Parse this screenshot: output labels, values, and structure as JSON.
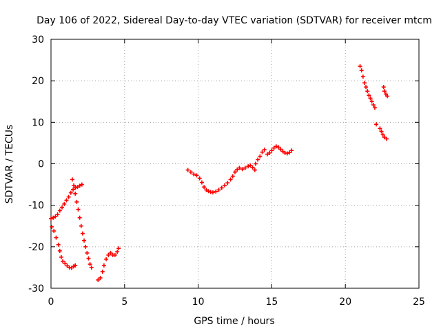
{
  "chart_data": {
    "type": "scatter",
    "title": "Day 106 of 2022, Sidereal Day-to-day VTEC variation (SDTVAR) for receiver mtcm",
    "xlabel": "GPS time / hours",
    "ylabel": "SDTVAR / TECUs",
    "xlim": [
      0,
      25
    ],
    "ylim": [
      -30,
      30
    ],
    "xticks": [
      0,
      5,
      10,
      15,
      20,
      25
    ],
    "yticks": [
      -30,
      -20,
      -10,
      0,
      10,
      20,
      30
    ],
    "grid": true,
    "marker": "plus",
    "color": "#ff0000",
    "series": [
      {
        "values": [
          [
            0.0,
            -13.2
          ],
          [
            0.15,
            -13.0
          ],
          [
            0.3,
            -12.7
          ],
          [
            0.45,
            -12.2
          ],
          [
            0.6,
            -11.3
          ],
          [
            0.75,
            -10.5
          ],
          [
            0.9,
            -9.7
          ],
          [
            1.05,
            -8.8
          ],
          [
            1.2,
            -8.0
          ],
          [
            1.35,
            -7.0
          ],
          [
            1.5,
            -6.2
          ],
          [
            1.65,
            -5.8
          ],
          [
            1.8,
            -5.6
          ],
          [
            1.95,
            -5.3
          ],
          [
            2.1,
            -5.0
          ],
          [
            0.05,
            -15.2
          ],
          [
            0.2,
            -16.2
          ],
          [
            0.35,
            -17.8
          ],
          [
            0.5,
            -19.5
          ],
          [
            0.6,
            -21.0
          ],
          [
            0.7,
            -22.5
          ],
          [
            0.8,
            -23.5
          ],
          [
            0.95,
            -24.0
          ],
          [
            1.1,
            -24.6
          ],
          [
            1.25,
            -25.0
          ],
          [
            1.4,
            -25.1
          ],
          [
            1.55,
            -24.7
          ],
          [
            1.65,
            -24.5
          ],
          [
            1.45,
            -3.8
          ],
          [
            1.55,
            -5.2
          ],
          [
            1.65,
            -7.2
          ],
          [
            1.75,
            -9.2
          ],
          [
            1.85,
            -11.0
          ],
          [
            1.95,
            -13.0
          ],
          [
            2.05,
            -15.0
          ],
          [
            2.15,
            -16.8
          ],
          [
            2.25,
            -18.5
          ],
          [
            2.35,
            -20.0
          ],
          [
            2.45,
            -21.5
          ],
          [
            2.55,
            -22.8
          ],
          [
            2.65,
            -24.2
          ],
          [
            2.75,
            -25.0
          ],
          [
            3.2,
            -28.0
          ],
          [
            3.35,
            -27.5
          ],
          [
            3.5,
            -26.0
          ],
          [
            3.6,
            -24.5
          ],
          [
            3.75,
            -23.0
          ],
          [
            3.9,
            -22.0
          ],
          [
            4.05,
            -21.5
          ],
          [
            4.2,
            -22.0
          ],
          [
            4.35,
            -22.0
          ],
          [
            4.5,
            -21.2
          ],
          [
            4.6,
            -20.4
          ],
          [
            9.3,
            -1.5
          ],
          [
            9.5,
            -2.0
          ],
          [
            9.7,
            -2.5
          ],
          [
            9.9,
            -2.8
          ],
          [
            10.1,
            -3.5
          ],
          [
            10.25,
            -4.5
          ],
          [
            10.4,
            -5.6
          ],
          [
            10.55,
            -6.3
          ],
          [
            10.7,
            -6.6
          ],
          [
            10.85,
            -6.8
          ],
          [
            11.0,
            -6.9
          ],
          [
            11.2,
            -6.7
          ],
          [
            11.4,
            -6.3
          ],
          [
            11.6,
            -5.8
          ],
          [
            11.8,
            -5.2
          ],
          [
            12.0,
            -4.6
          ],
          [
            12.2,
            -3.8
          ],
          [
            12.35,
            -3.0
          ],
          [
            12.5,
            -2.0
          ],
          [
            12.65,
            -1.4
          ],
          [
            12.8,
            -1.0
          ],
          [
            13.0,
            -1.3
          ],
          [
            13.2,
            -1.0
          ],
          [
            13.4,
            -0.6
          ],
          [
            13.55,
            -0.4
          ],
          [
            13.7,
            -0.9
          ],
          [
            13.85,
            -1.5
          ],
          [
            13.9,
            0.0
          ],
          [
            14.05,
            1.0
          ],
          [
            14.2,
            1.8
          ],
          [
            14.35,
            2.8
          ],
          [
            14.5,
            3.4
          ],
          [
            14.7,
            2.3
          ],
          [
            14.85,
            2.6
          ],
          [
            15.0,
            3.2
          ],
          [
            15.15,
            3.8
          ],
          [
            15.3,
            4.2
          ],
          [
            15.45,
            4.0
          ],
          [
            15.6,
            3.5
          ],
          [
            15.75,
            3.0
          ],
          [
            15.9,
            2.6
          ],
          [
            16.05,
            2.5
          ],
          [
            16.2,
            2.7
          ],
          [
            16.35,
            3.2
          ],
          [
            21.0,
            23.5
          ],
          [
            21.1,
            22.5
          ],
          [
            21.2,
            21.0
          ],
          [
            21.3,
            19.5
          ],
          [
            21.4,
            18.5
          ],
          [
            21.5,
            17.5
          ],
          [
            21.6,
            16.5
          ],
          [
            21.7,
            15.8
          ],
          [
            21.8,
            15.0
          ],
          [
            21.9,
            14.2
          ],
          [
            22.0,
            13.5
          ],
          [
            22.1,
            9.5
          ],
          [
            22.35,
            8.5
          ],
          [
            22.45,
            7.8
          ],
          [
            22.55,
            7.0
          ],
          [
            22.65,
            6.4
          ],
          [
            22.8,
            6.0
          ],
          [
            22.6,
            18.5
          ],
          [
            22.65,
            17.5
          ],
          [
            22.75,
            16.8
          ],
          [
            22.85,
            16.3
          ]
        ]
      }
    ]
  }
}
